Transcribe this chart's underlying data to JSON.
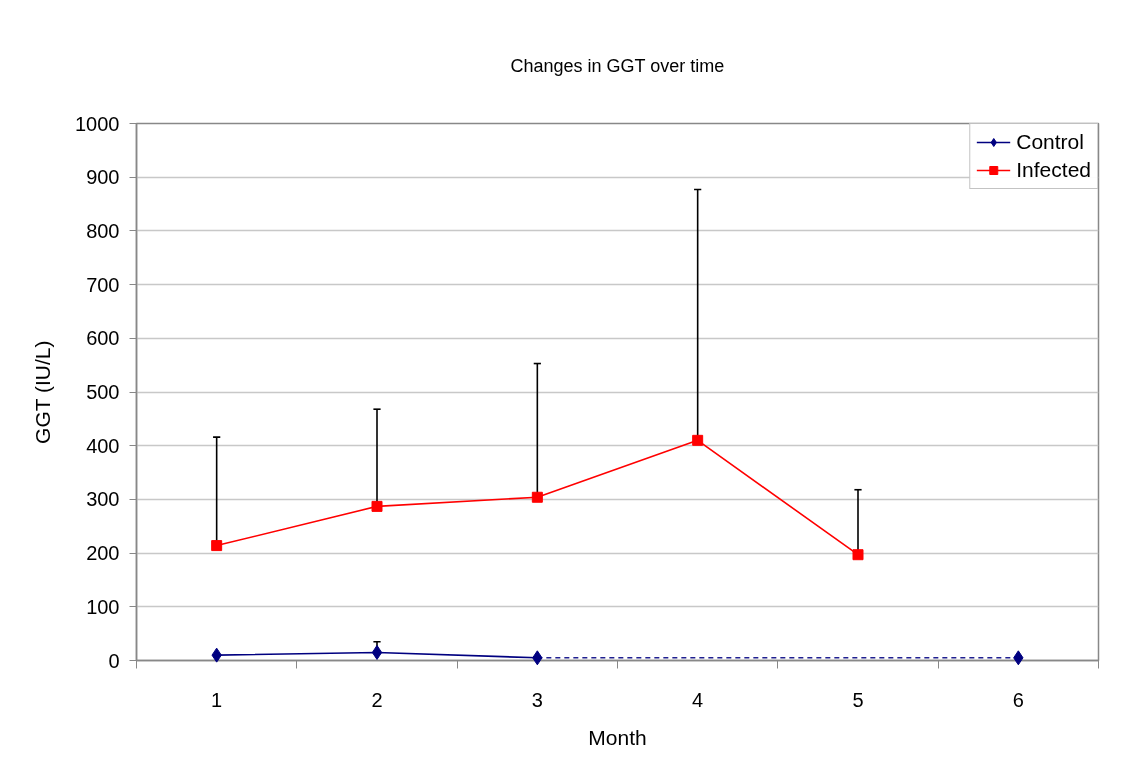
{
  "chart_data": {
    "type": "line",
    "title": "Changes in GGT over time",
    "xlabel": "Month",
    "ylabel": "GGT (IU/L)",
    "x": [
      1,
      2,
      3,
      4,
      5,
      6
    ],
    "xlim": [
      0.5,
      6.5
    ],
    "xticks": [
      {
        "value": 0.5,
        "label": null
      },
      1,
      {
        "value": 1.5,
        "label": null
      },
      2,
      {
        "value": 2.5,
        "label": null
      },
      3,
      {
        "value": 3.5,
        "label": null
      },
      4,
      {
        "value": 4.5,
        "label": null
      },
      5,
      {
        "value": 5.5,
        "label": null
      },
      6,
      {
        "value": 6.5,
        "label": null
      }
    ],
    "ylim": [
      0,
      1000
    ],
    "yticks": [
      0,
      100,
      200,
      300,
      400,
      500,
      600,
      700,
      800,
      900,
      1000
    ],
    "grid": "y",
    "legend": "top right",
    "series": [
      {
        "name": "Control",
        "color": "#000080",
        "marker": "diamond",
        "line_style": "solid",
        "values": [
          10,
          15,
          5,
          null,
          null,
          5
        ],
        "errors": [
          null,
          [
            15,
            35
          ],
          null,
          null,
          null,
          null
        ]
      },
      {
        "name": "Infected",
        "color": "#ff0000",
        "marker": "square",
        "line_style": "solid",
        "values": [
          214,
          287,
          304,
          410,
          197,
          null
        ],
        "errors": [
          [
            214,
            416
          ],
          [
            287,
            468
          ],
          [
            304,
            553
          ],
          [
            410,
            877
          ],
          [
            197,
            318
          ],
          null
        ]
      },
      {
        "type": "line",
        "x": [
          3,
          6
        ],
        "values": [
          5,
          5
        ],
        "color": "#202090",
        "marker": "none",
        "line_style": "dashed"
      }
    ]
  }
}
